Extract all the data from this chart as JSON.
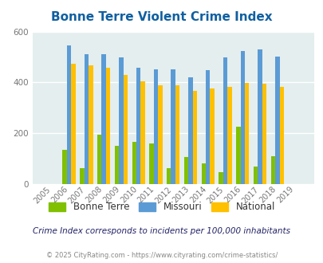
{
  "title": "Bonne Terre Violent Crime Index",
  "years": [
    2005,
    2006,
    2007,
    2008,
    2009,
    2010,
    2011,
    2012,
    2013,
    2014,
    2015,
    2016,
    2017,
    2018,
    2019
  ],
  "bonne_terre": [
    0,
    135,
    63,
    193,
    152,
    165,
    160,
    62,
    107,
    83,
    47,
    227,
    70,
    110,
    0
  ],
  "missouri": [
    0,
    547,
    510,
    510,
    497,
    458,
    450,
    452,
    420,
    447,
    500,
    525,
    530,
    503,
    0
  ],
  "national": [
    0,
    474,
    467,
    457,
    430,
    405,
    390,
    390,
    368,
    376,
    383,
    398,
    395,
    383,
    0
  ],
  "bonne_terre_color": "#80c000",
  "missouri_color": "#5b9bd5",
  "national_color": "#ffc000",
  "bg_color": "#e4eeee",
  "grid_color": "#ffffff",
  "title_color": "#1060a0",
  "ylim": [
    0,
    600
  ],
  "yticks": [
    0,
    200,
    400,
    600
  ],
  "legend_labels": [
    "Bonne Terre",
    "Missouri",
    "National"
  ],
  "footer_note": "Crime Index corresponds to incidents per 100,000 inhabitants",
  "footer_credit": "© 2025 CityRating.com - https://www.cityrating.com/crime-statistics/",
  "bar_width": 0.25
}
